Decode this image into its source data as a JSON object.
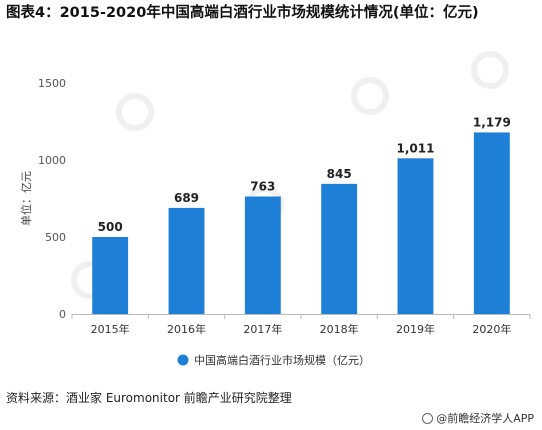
{
  "title": "图表4：2015-2020年中国高端白酒行业市场规模统计情况(单位：亿元)",
  "source": "资料来源：酒业家 Euromonitor 前瞻产业研究院整理",
  "brand": "@前瞻经济学人APP",
  "colors": {
    "bar": "#1e7fd6",
    "axis": "#bbbbbb",
    "grid": "#e6e6e6"
  },
  "chart_data": {
    "type": "bar",
    "categories": [
      "2015年",
      "2016年",
      "2017年",
      "2018年",
      "2019年",
      "2020年"
    ],
    "series": [
      {
        "name": "中国高端白酒行业市场规模（亿元）",
        "values": [
          500,
          689,
          763,
          845,
          1011,
          1179
        ]
      }
    ],
    "data_labels": [
      "500",
      "689",
      "763",
      "845",
      "1,011",
      "1,179"
    ],
    "ylabel": "单位：亿元",
    "xlabel": "",
    "ylim": [
      0,
      1500
    ],
    "yticks": [
      0,
      500,
      1000,
      1500
    ],
    "legend_position": "bottom",
    "grid": false
  }
}
